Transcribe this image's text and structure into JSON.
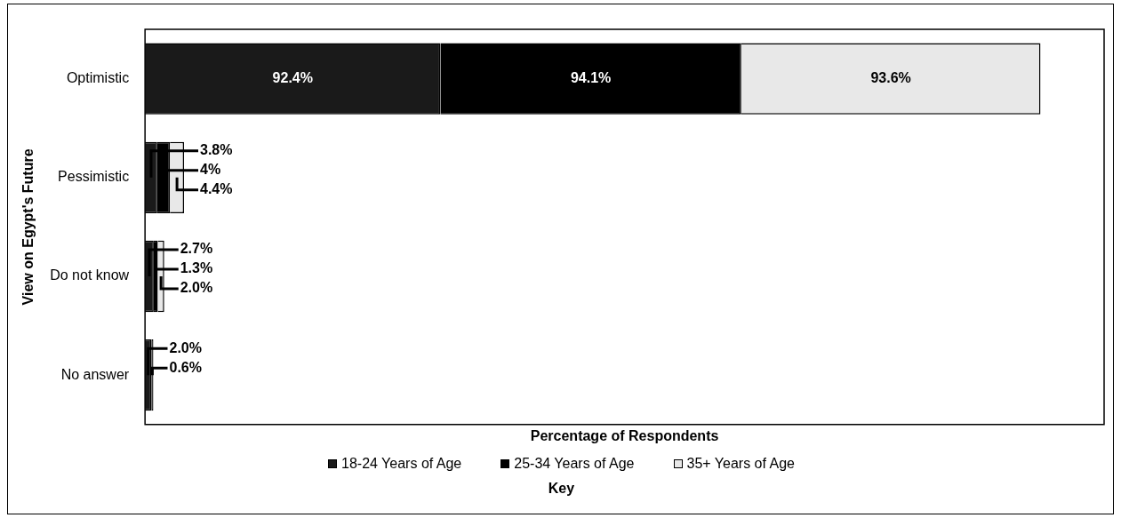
{
  "chart_data": {
    "type": "bar",
    "orientation": "horizontal",
    "stacked": true,
    "categories": [
      "Optimistic",
      "Pessimistic",
      "Do not know",
      "No answer"
    ],
    "series": [
      {
        "name": "18-24 Years of Age",
        "color": "#1a1a1a",
        "values": [
          92.4,
          3.8,
          2.7,
          2.0
        ],
        "value_labels": [
          "92.4%",
          "3.8%",
          "2.7%",
          "2.0%"
        ]
      },
      {
        "name": "25-34 Years of Age",
        "color": "#000000",
        "values": [
          94.1,
          4,
          1.3,
          0.6
        ],
        "value_labels": [
          "94.1%",
          "4%",
          "1.3%",
          "0.6%"
        ]
      },
      {
        "name": "35+ Years of Age",
        "color": "#e8e8e8",
        "values": [
          93.6,
          4.4,
          2.0,
          null
        ],
        "value_labels": [
          "93.6%",
          "4.4%",
          "2.0%",
          null
        ]
      }
    ],
    "xlabel": "Percentage of Respondents",
    "ylabel": "View on Egypt's Future",
    "legend_title": "Key",
    "legend": "bottom",
    "grid": false,
    "tick_labels": "y"
  }
}
